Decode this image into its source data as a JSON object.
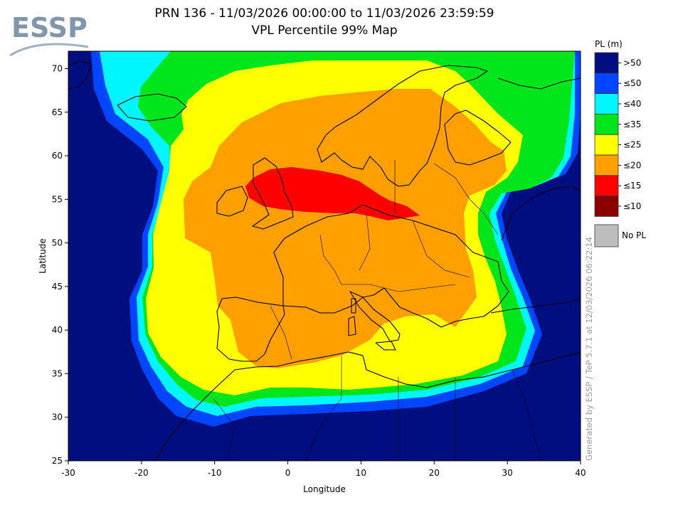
{
  "logo": {
    "text": "ESSP"
  },
  "title": {
    "line1": "PRN 136 - 11/03/2026 00:00:00 to 11/03/2026 23:59:59",
    "line2": "VPL Percentile 99% Map"
  },
  "axes": {
    "x_label": "Longitude",
    "y_label": "Latitude",
    "x_ticks": [
      -30,
      -20,
      -10,
      0,
      10,
      20,
      30,
      40
    ],
    "y_ticks": [
      25,
      30,
      35,
      40,
      45,
      50,
      55,
      60,
      65,
      70
    ],
    "x_range": [
      -30,
      40
    ],
    "y_range": [
      25,
      72
    ]
  },
  "legend": {
    "title": "PL (m)",
    "items": [
      {
        "label": ">50",
        "color": "#000e80"
      },
      {
        "label": "≤50",
        "color": "#0046ff"
      },
      {
        "label": "≤40",
        "color": "#00f6ff"
      },
      {
        "label": "≤35",
        "color": "#00e61a"
      },
      {
        "label": "≤25",
        "color": "#ffff00"
      },
      {
        "label": "≤20",
        "color": "#ff9f00"
      },
      {
        "label": "≤15",
        "color": "#ff0000"
      },
      {
        "label": "≤10",
        "color": "#8a0000"
      }
    ],
    "no_pl": {
      "label": "No PL",
      "color": "#bdbdbd"
    }
  },
  "credit": "Generated by ESSP / TeP 5.7.1 at 12/03/2026 06:22:14"
}
